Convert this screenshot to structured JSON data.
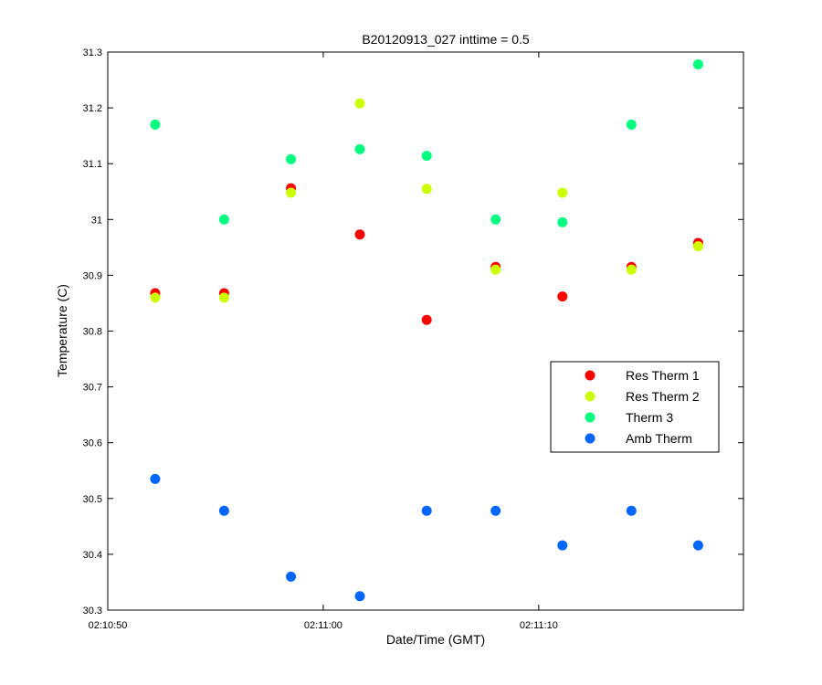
{
  "chart_data": {
    "type": "scatter",
    "title": "B20120913_027 inttime = 0.5",
    "xlabel": "Date/Time (GMT)",
    "ylabel": "Temperature (C)",
    "xlim": [
      "02:10:50",
      "02:11:19.5"
    ],
    "ylim": [
      30.3,
      31.3
    ],
    "x_ticks": [
      "02:10:50",
      "02:11:00",
      "02:11:10"
    ],
    "y_ticks": [
      "30.3",
      "30.4",
      "30.5",
      "30.6",
      "30.7",
      "30.8",
      "30.9",
      "31",
      "31.1",
      "31.2",
      "31.3"
    ],
    "grid": false,
    "legend_position": "right",
    "x": [
      "02:10:52.2",
      "02:10:55.4",
      "02:10:58.5",
      "02:11:01.7",
      "02:11:04.8",
      "02:11:08.0",
      "02:11:11.1",
      "02:11:14.3",
      "02:11:17.4"
    ],
    "series": [
      {
        "name": "Res Therm 1",
        "color": "#ff0000",
        "values": [
          30.868,
          30.868,
          31.056,
          30.973,
          30.82,
          30.915,
          30.862,
          30.915,
          30.958
        ]
      },
      {
        "name": "Res Therm 2",
        "color": "#ccff00",
        "values": [
          30.86,
          30.86,
          31.048,
          31.208,
          31.055,
          30.91,
          31.048,
          30.91,
          30.952
        ]
      },
      {
        "name": "Therm 3",
        "color": "#00ff80",
        "values": [
          31.17,
          31.0,
          31.108,
          31.126,
          31.114,
          31.0,
          30.995,
          31.17,
          31.278
        ]
      },
      {
        "name": "Amb Therm",
        "color": "#0066ff",
        "values": [
          30.535,
          30.478,
          30.36,
          30.325,
          30.478,
          30.478,
          30.416,
          30.478,
          30.416
        ]
      }
    ]
  }
}
